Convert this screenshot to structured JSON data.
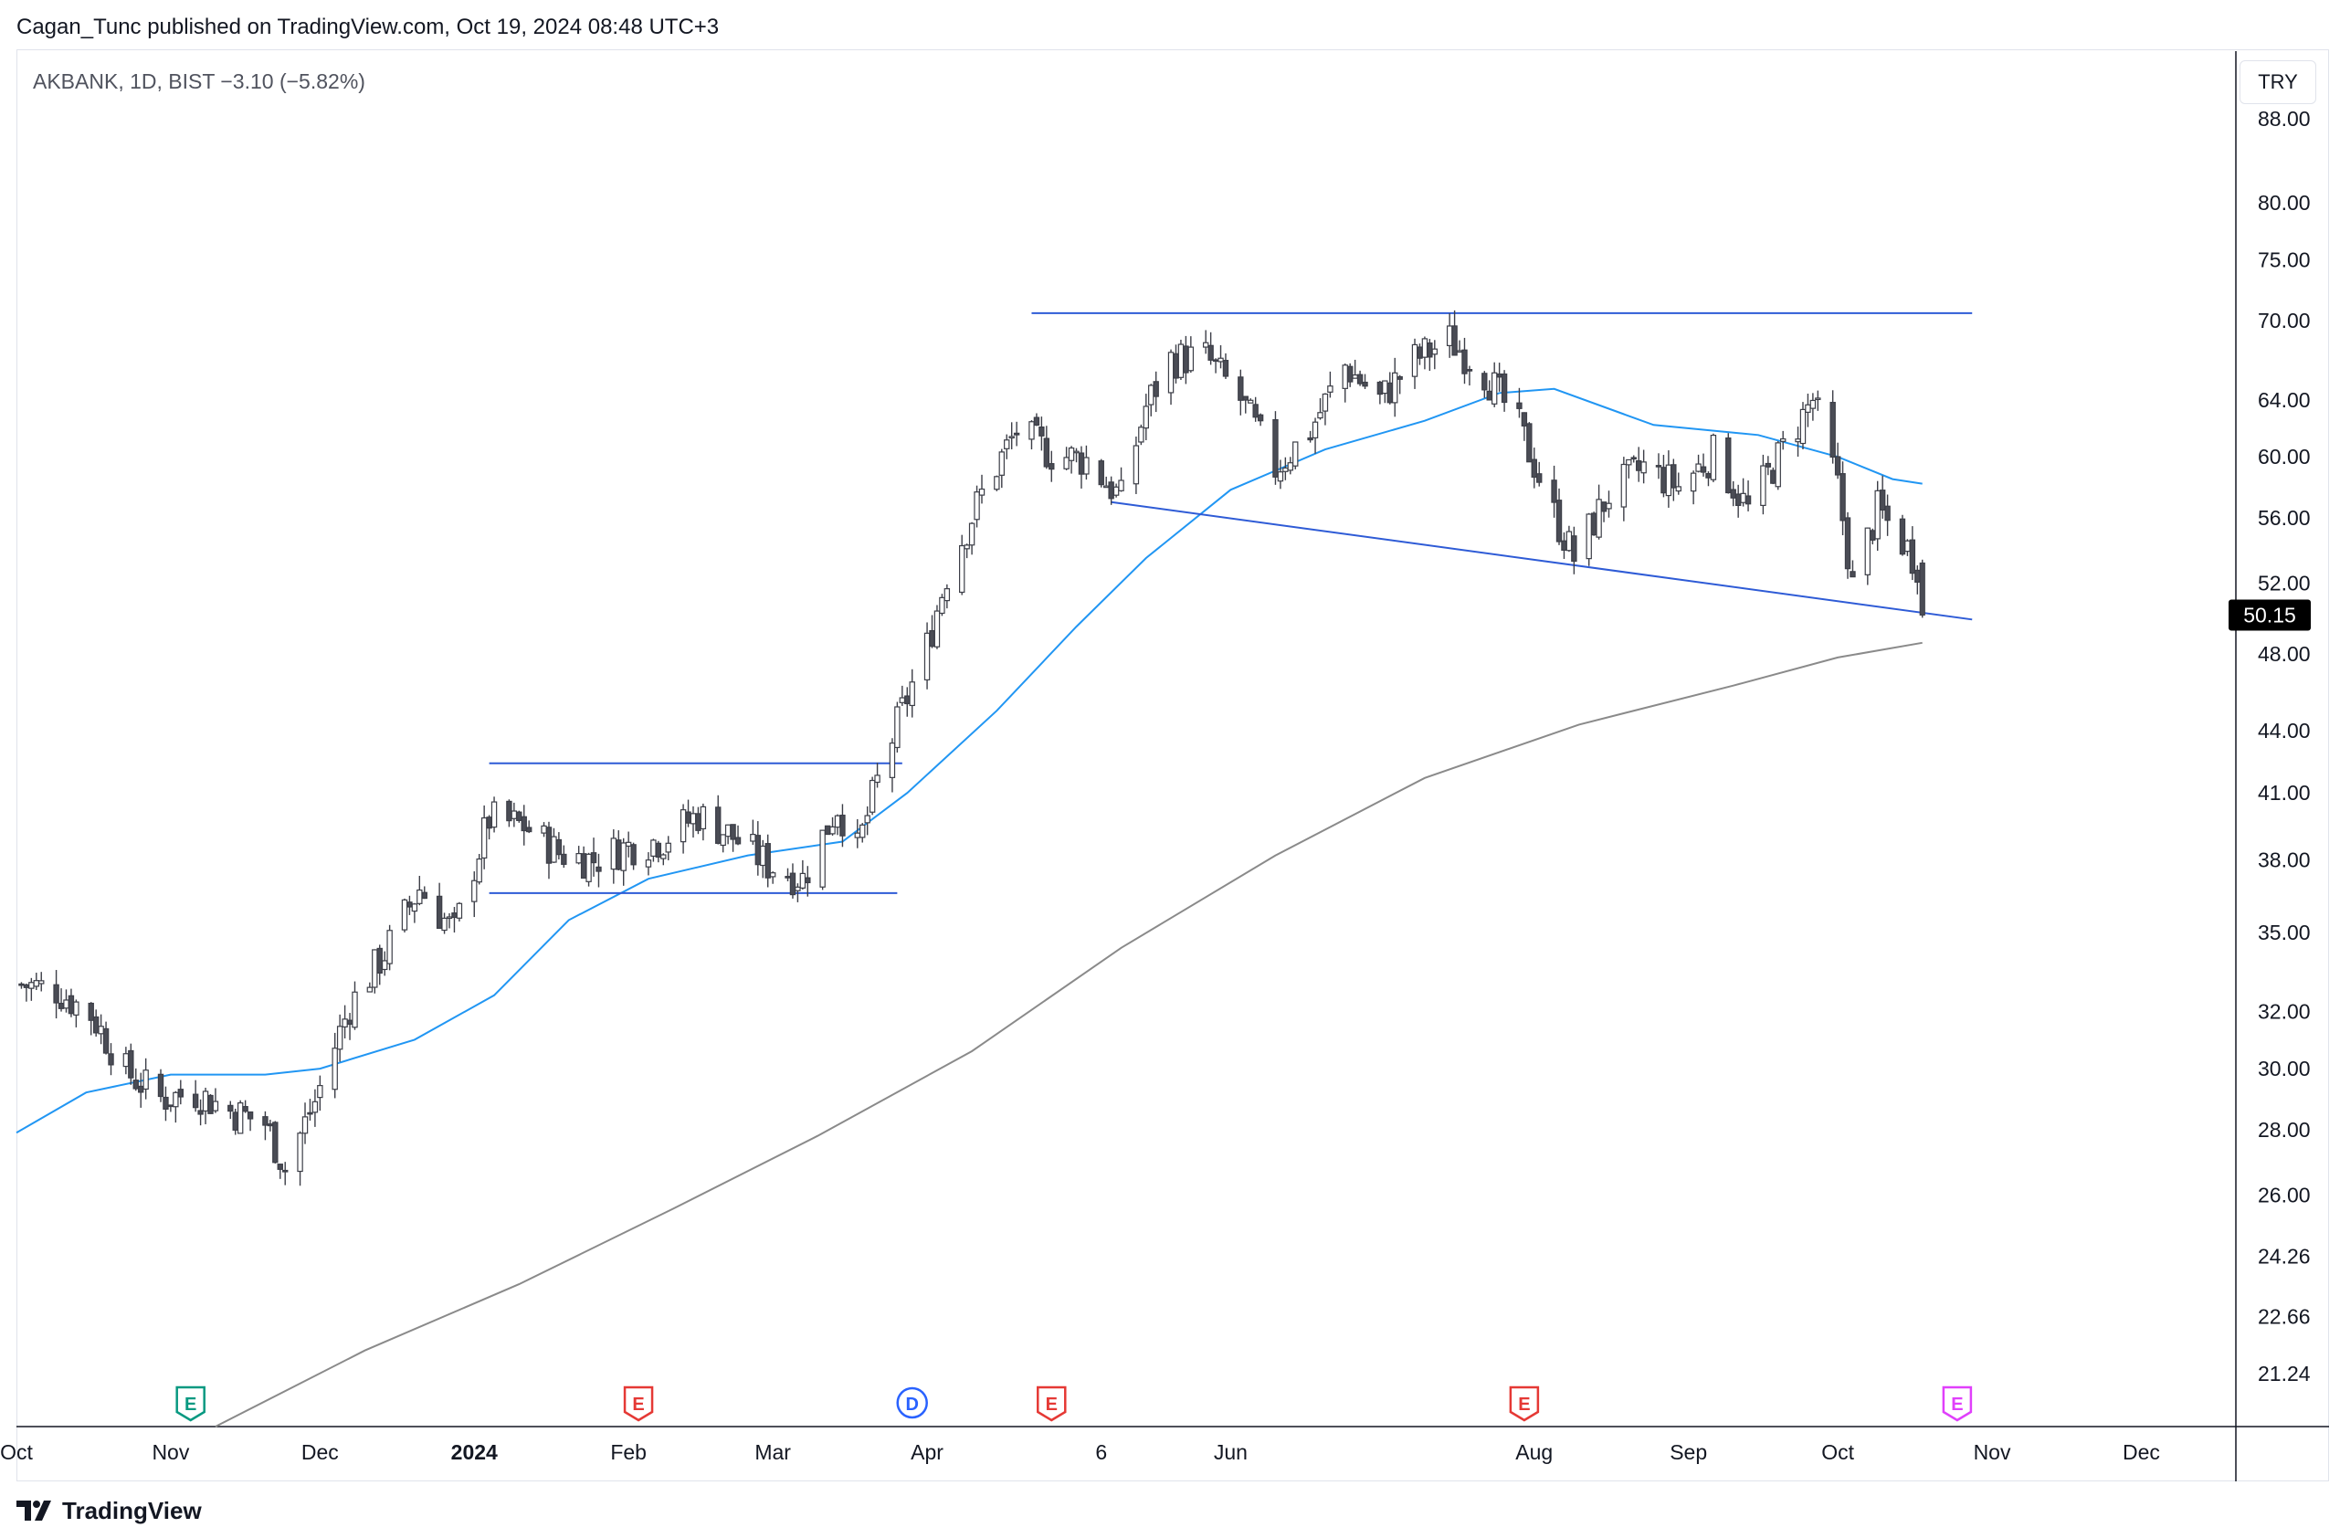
{
  "header": {
    "published": "Cagan_Tunc published on TradingView.com, Oct 19, 2024 08:48 UTC+3"
  },
  "legend": {
    "symbol_line": "AKBANK, 1D, BIST  −3.10 (−5.82%)"
  },
  "price_scale": {
    "currency": "TRY",
    "last_price": "50.15"
  },
  "footer": {
    "brand": "TradingView",
    "logo_icon": "tradingview-logo-icon"
  },
  "colors": {
    "candle_up": "#ffffff",
    "candle_down": "#4a4c55",
    "wick": "#3c3e47",
    "ma_fast": "#2196f3",
    "ma_slow": "#8a8a8a",
    "trendline": "#2e5bd6",
    "last_price_bg": "#000000",
    "event_earnings": "#e53935",
    "event_dividend": "#2962ff",
    "event_earnings_past_green": "#089981",
    "event_earnings_upcoming": "#e040fb"
  },
  "chart_data": {
    "type": "candlestick",
    "title": "AKBANK, 1D, BIST",
    "scale": "log",
    "ylim": [
      20.0,
      95.0
    ],
    "y_ticks": [
      "88.00",
      "80.00",
      "75.00",
      "70.00",
      "64.00",
      "60.00",
      "56.00",
      "52.00",
      "48.00",
      "44.00",
      "41.00",
      "38.00",
      "35.00",
      "32.00",
      "30.00",
      "28.00",
      "26.00",
      "24.26",
      "22.66",
      "21.24"
    ],
    "x_ticks": [
      "Oct",
      "Nov",
      "Dec",
      "2024",
      "Feb",
      "Mar",
      "Apr",
      "6",
      "Jun",
      "Aug",
      "Sep",
      "Oct",
      "Nov",
      "Dec"
    ],
    "x_range": [
      "2023-10-01",
      "2024-12-20"
    ],
    "last_close": 50.15,
    "change": -3.1,
    "change_pct": -5.82,
    "series": [
      {
        "name": "close",
        "points": [
          [
            "2023-10-02",
            33.0
          ],
          [
            "2023-10-09",
            32.8
          ],
          [
            "2023-10-16",
            31.9
          ],
          [
            "2023-10-23",
            29.9
          ],
          [
            "2023-10-30",
            29.0
          ],
          [
            "2023-11-06",
            29.2
          ],
          [
            "2023-11-13",
            28.6
          ],
          [
            "2023-11-20",
            28.2
          ],
          [
            "2023-11-24",
            26.8
          ],
          [
            "2023-11-30",
            28.9
          ],
          [
            "2023-12-07",
            32.2
          ],
          [
            "2023-12-14",
            34.2
          ],
          [
            "2023-12-21",
            36.8
          ],
          [
            "2023-12-28",
            35.0
          ],
          [
            "2024-01-04",
            39.8
          ],
          [
            "2024-01-11",
            39.5
          ],
          [
            "2024-01-18",
            38.3
          ],
          [
            "2024-01-25",
            38.0
          ],
          [
            "2024-02-01",
            38.6
          ],
          [
            "2024-02-08",
            38.9
          ],
          [
            "2024-02-15",
            40.0
          ],
          [
            "2024-02-22",
            39.0
          ],
          [
            "2024-02-29",
            37.8
          ],
          [
            "2024-03-07",
            37.2
          ],
          [
            "2024-03-14",
            40.4
          ],
          [
            "2024-03-18",
            38.4
          ],
          [
            "2024-03-22",
            41.5
          ],
          [
            "2024-03-27",
            45.0
          ],
          [
            "2024-04-01",
            48.4
          ],
          [
            "2024-04-05",
            52.5
          ],
          [
            "2024-04-12",
            57.5
          ],
          [
            "2024-04-19",
            61.8
          ],
          [
            "2024-04-26",
            60.2
          ],
          [
            "2024-05-03",
            59.8
          ],
          [
            "2024-05-10",
            57.2
          ],
          [
            "2024-05-15",
            63.5
          ],
          [
            "2024-05-20",
            67.0
          ],
          [
            "2024-05-27",
            67.2
          ],
          [
            "2024-06-03",
            64.0
          ],
          [
            "2024-06-10",
            59.2
          ],
          [
            "2024-06-17",
            61.8
          ],
          [
            "2024-06-24",
            66.5
          ],
          [
            "2024-07-01",
            64.0
          ],
          [
            "2024-07-08",
            67.0
          ],
          [
            "2024-07-15",
            68.5
          ],
          [
            "2024-07-22",
            66.0
          ],
          [
            "2024-07-29",
            62.0
          ],
          [
            "2024-08-05",
            56.2
          ],
          [
            "2024-08-09",
            53.5
          ],
          [
            "2024-08-16",
            57.5
          ],
          [
            "2024-08-23",
            59.3
          ],
          [
            "2024-08-30",
            58.0
          ],
          [
            "2024-09-06",
            60.2
          ],
          [
            "2024-09-13",
            56.5
          ],
          [
            "2024-09-20",
            60.5
          ],
          [
            "2024-09-26",
            64.0
          ],
          [
            "2024-10-01",
            58.0
          ],
          [
            "2024-10-04",
            51.8
          ],
          [
            "2024-10-09",
            56.5
          ],
          [
            "2024-10-14",
            54.5
          ],
          [
            "2024-10-17",
            53.2
          ],
          [
            "2024-10-18",
            50.15
          ]
        ]
      },
      {
        "name": "ma_fast",
        "points": [
          [
            "2023-10-01",
            27.9
          ],
          [
            "2023-10-15",
            29.2
          ],
          [
            "2023-11-01",
            29.8
          ],
          [
            "2023-11-20",
            29.8
          ],
          [
            "2023-12-01",
            30.0
          ],
          [
            "2023-12-20",
            31.0
          ],
          [
            "2024-01-05",
            32.6
          ],
          [
            "2024-01-20",
            35.5
          ],
          [
            "2024-02-05",
            37.2
          ],
          [
            "2024-02-25",
            38.2
          ],
          [
            "2024-03-15",
            38.8
          ],
          [
            "2024-03-28",
            41.0
          ],
          [
            "2024-04-15",
            45.0
          ],
          [
            "2024-05-01",
            49.5
          ],
          [
            "2024-05-15",
            53.5
          ],
          [
            "2024-06-01",
            57.8
          ],
          [
            "2024-06-20",
            60.5
          ],
          [
            "2024-07-10",
            62.5
          ],
          [
            "2024-07-25",
            64.5
          ],
          [
            "2024-08-05",
            64.8
          ],
          [
            "2024-08-25",
            62.2
          ],
          [
            "2024-09-15",
            61.5
          ],
          [
            "2024-10-01",
            60.0
          ],
          [
            "2024-10-12",
            58.5
          ],
          [
            "2024-10-18",
            58.2
          ]
        ]
      },
      {
        "name": "ma_slow",
        "points": [
          [
            "2023-11-10",
            20.0
          ],
          [
            "2023-12-10",
            21.8
          ],
          [
            "2024-01-10",
            23.5
          ],
          [
            "2024-02-10",
            25.6
          ],
          [
            "2024-03-10",
            27.8
          ],
          [
            "2024-04-10",
            30.6
          ],
          [
            "2024-05-10",
            34.4
          ],
          [
            "2024-06-10",
            38.2
          ],
          [
            "2024-07-10",
            41.7
          ],
          [
            "2024-08-10",
            44.3
          ],
          [
            "2024-09-10",
            46.3
          ],
          [
            "2024-10-01",
            47.8
          ],
          [
            "2024-10-18",
            48.6
          ]
        ]
      }
    ],
    "trendlines": [
      {
        "role": "resistance-top",
        "from": [
          "2024-04-22",
          70.6
        ],
        "to": [
          "2024-10-28",
          70.6
        ]
      },
      {
        "role": "descending-support",
        "from": [
          "2024-05-08",
          57.0
        ],
        "to": [
          "2024-10-28",
          49.9
        ]
      },
      {
        "role": "range-top",
        "from": [
          "2024-01-04",
          42.4
        ],
        "to": [
          "2024-03-27",
          42.4
        ]
      },
      {
        "role": "range-bottom",
        "from": [
          "2024-01-04",
          36.6
        ],
        "to": [
          "2024-03-26",
          36.6
        ]
      }
    ],
    "events": [
      {
        "label": "E",
        "kind": "earnings-past-green",
        "date": "2023-11-05"
      },
      {
        "label": "E",
        "kind": "earnings",
        "date": "2024-02-03"
      },
      {
        "label": "D",
        "kind": "dividend",
        "date": "2024-03-29"
      },
      {
        "label": "E",
        "kind": "earnings",
        "date": "2024-04-26"
      },
      {
        "label": "E",
        "kind": "earnings",
        "date": "2024-07-30"
      },
      {
        "label": "E",
        "kind": "earnings-upcoming",
        "date": "2024-10-25"
      }
    ],
    "grid": false,
    "legend_position": "top-left"
  }
}
